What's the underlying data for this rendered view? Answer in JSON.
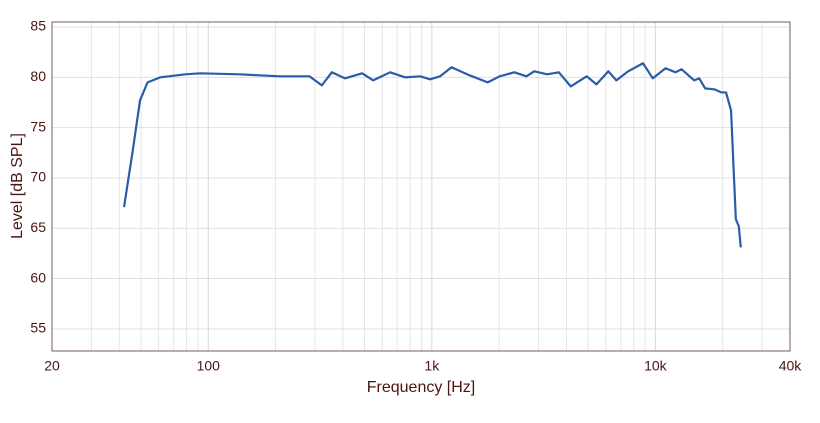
{
  "chart_data": {
    "type": "line",
    "x_label": "Frequency [Hz]",
    "y_label": "Level [dB SPL]",
    "xscale": "log",
    "xlim": [
      20,
      40000
    ],
    "ylim": [
      52.8,
      85.5
    ],
    "xticks": [
      20,
      100,
      {
        "value": 1000,
        "label": "1k"
      },
      {
        "value": 10000,
        "label": "10k"
      },
      {
        "value": 40000,
        "label": "40k"
      }
    ],
    "xminor": [
      30,
      40,
      50,
      60,
      70,
      80,
      90,
      200,
      300,
      400,
      500,
      600,
      700,
      800,
      900,
      2000,
      3000,
      4000,
      5000,
      6000,
      7000,
      8000,
      9000,
      20000,
      30000
    ],
    "yticks": [
      55,
      60,
      65,
      70,
      75,
      80,
      85
    ],
    "grid": true,
    "series": [
      {
        "color": "#2a5caa",
        "x": [
          42,
          46,
          49.5,
          53.5,
          61,
          79,
          92,
          138,
          209,
          284,
          322,
          357,
          409,
          488,
          546,
          651,
          759,
          887,
          982,
          1088,
          1225,
          1476,
          1778,
          2010,
          2340,
          2650,
          2870,
          3280,
          3700,
          4180,
          4930,
          5450,
          6160,
          6690,
          7560,
          8800,
          9730,
          11100,
          12300,
          13100,
          14900,
          15700,
          16700,
          18400,
          19700,
          20700,
          21800,
          22400,
          22900,
          23600,
          24100
        ],
        "values": [
          67.1,
          72.8,
          77.7,
          79.5,
          80,
          80.3,
          80.4,
          80.3,
          80.1,
          80.1,
          79.2,
          80.5,
          79.9,
          80.4,
          79.7,
          80.5,
          80,
          80.1,
          79.8,
          80.1,
          81,
          80.2,
          79.5,
          80.1,
          80.5,
          80.1,
          80.6,
          80.3,
          80.5,
          79.1,
          80.1,
          79.3,
          80.6,
          79.7,
          80.6,
          81.4,
          79.9,
          80.9,
          80.5,
          80.8,
          79.7,
          79.9,
          78.9,
          78.8,
          78.5,
          78.5,
          76.7,
          70.7,
          65.9,
          65.2,
          63.1
        ]
      }
    ]
  }
}
